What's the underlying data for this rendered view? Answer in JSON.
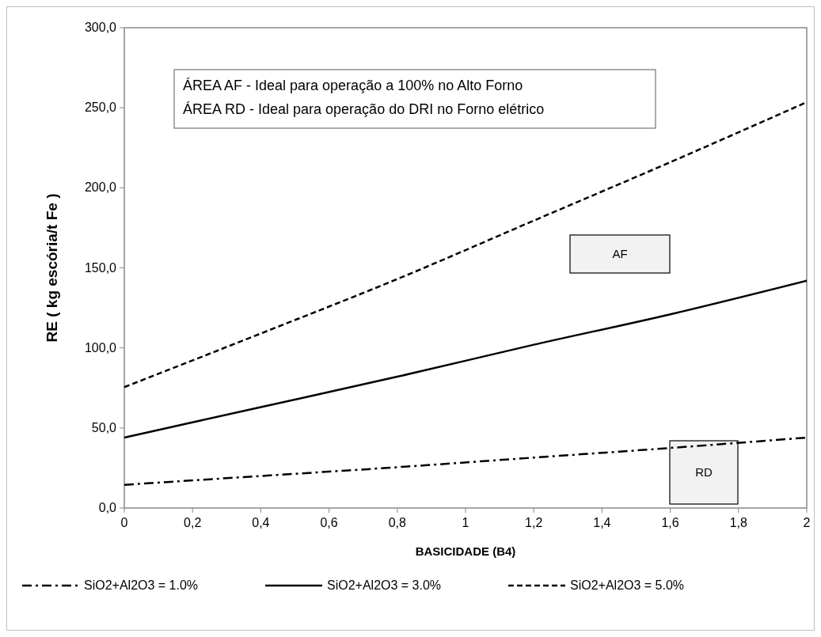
{
  "chart_data": {
    "type": "line",
    "xlabel": "BASICIDADE (B4)",
    "ylabel": "RE ( kg escória/t  Fe )",
    "x": [
      0,
      0.4,
      0.8,
      1.2,
      1.6,
      2
    ],
    "series": [
      {
        "name": "SiO2+Al2O3 = 1.0%",
        "color": "#000000",
        "line_style": "dashdot",
        "values": [
          14.5,
          20,
          25.5,
          31.5,
          37.5,
          44
        ]
      },
      {
        "name": "SiO2+Al2O3 = 3.0%",
        "color": "#000000",
        "line_style": "solid",
        "values": [
          44,
          63,
          82,
          102,
          121,
          142
        ]
      },
      {
        "name": "SiO2+Al2O3 = 5.0%",
        "color": "#000000",
        "line_style": "dashed",
        "values": [
          75.5,
          109,
          143,
          179.5,
          216,
          253.5
        ]
      }
    ],
    "xlim": [
      0,
      2
    ],
    "xticks": [
      {
        "value": 0,
        "label": "0"
      },
      {
        "value": 0.2,
        "label": "0,2"
      },
      {
        "value": 0.4,
        "label": "0,4"
      },
      {
        "value": 0.6,
        "label": "0,6"
      },
      {
        "value": 0.8,
        "label": "0,8"
      },
      {
        "value": 1,
        "label": "1"
      },
      {
        "value": 1.2,
        "label": "1,2"
      },
      {
        "value": 1.4,
        "label": "1,4"
      },
      {
        "value": 1.6,
        "label": "1,6"
      },
      {
        "value": 1.8,
        "label": "1,8"
      },
      {
        "value": 2,
        "label": "2"
      }
    ],
    "ylim": [
      0,
      300
    ],
    "yticks": [
      {
        "value": 0,
        "label": "0,0"
      },
      {
        "value": 50,
        "label": "50,0"
      },
      {
        "value": 100,
        "label": "100,0"
      },
      {
        "value": 150,
        "label": "150,0"
      },
      {
        "value": 200,
        "label": "200,0"
      },
      {
        "value": 250,
        "label": "250,0"
      },
      {
        "value": 300,
        "label": "300,0"
      }
    ],
    "annotations": [
      "ÁREA AF - Ideal para operação a 100% no Alto Forno",
      "ÁREA RD - Ideal para operação do DRI no Forno elétrico",
      "AF",
      "RD"
    ],
    "grid": false,
    "legend": "bottom",
    "marker": "none"
  }
}
